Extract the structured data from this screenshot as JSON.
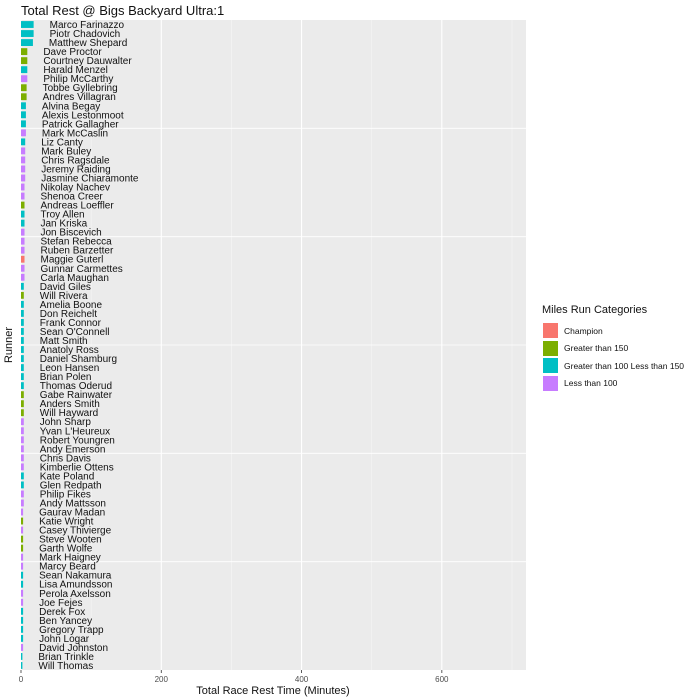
{
  "chart_data": {
    "type": "bar",
    "orientation": "horizontal",
    "title": "Total Rest @ Bigs Backyard Ultra:1",
    "xlabel": "Total Race Rest Time (Minutes)",
    "ylabel": "Runner",
    "xlim": [
      0,
      720
    ],
    "xticks": [
      "0",
      "200",
      "400",
      "600"
    ],
    "grid": true,
    "legend": {
      "title": "Miles Run Categories",
      "position": "right",
      "items": [
        {
          "label": "Champion",
          "color": "#F8766D"
        },
        {
          "label": "Greater than 150",
          "color": "#7CAE00"
        },
        {
          "label": "Greater than 100 Less than 150",
          "color": "#00BFC4"
        },
        {
          "label": "Less than 100",
          "color": "#C77CFF"
        }
      ]
    },
    "runners": [
      {
        "name": "Marco Farinazzo",
        "category": "Greater than 100 Less than 150",
        "value": 18
      },
      {
        "name": "Piotr Chadovich",
        "category": "Greater than 100 Less than 150",
        "value": 18
      },
      {
        "name": "Matthew Shepard",
        "category": "Greater than 100 Less than 150",
        "value": 17
      },
      {
        "name": "Dave Proctor",
        "category": "Greater than 150",
        "value": 9
      },
      {
        "name": "Courtney Dauwalter",
        "category": "Greater than 150",
        "value": 9
      },
      {
        "name": "Harald Menzel",
        "category": "Greater than 100 Less than 150",
        "value": 9
      },
      {
        "name": "Philip McCarthy",
        "category": "Less than 100",
        "value": 9
      },
      {
        "name": "Tobbe Gyllebring",
        "category": "Greater than 150",
        "value": 8
      },
      {
        "name": "Andres Villagran",
        "category": "Greater than 150",
        "value": 8
      },
      {
        "name": "Alvina Begay",
        "category": "Greater than 100 Less than 150",
        "value": 7
      },
      {
        "name": "Alexis Lestonmoot",
        "category": "Greater than 100 Less than 150",
        "value": 7
      },
      {
        "name": "Patrick Gallagher",
        "category": "Greater than 100 Less than 150",
        "value": 7
      },
      {
        "name": "Mark McCaslin",
        "category": "Less than 100",
        "value": 7
      },
      {
        "name": "Liz Canty",
        "category": "Greater than 100 Less than 150",
        "value": 6
      },
      {
        "name": "Mark Buley",
        "category": "Less than 100",
        "value": 6
      },
      {
        "name": "Chris Ragsdale",
        "category": "Less than 100",
        "value": 6
      },
      {
        "name": "Jeremy Raiding",
        "category": "Less than 100",
        "value": 6
      },
      {
        "name": "Jasmine Chiaramonte",
        "category": "Less than 100",
        "value": 6
      },
      {
        "name": "Nikolay Nachev",
        "category": "Less than 100",
        "value": 5
      },
      {
        "name": "Shenoa Creer",
        "category": "Less than 100",
        "value": 5
      },
      {
        "name": "Andreas Loeffler",
        "category": "Greater than 150",
        "value": 5
      },
      {
        "name": "Troy Allen",
        "category": "Greater than 100 Less than 150",
        "value": 5
      },
      {
        "name": "Jan Kriska",
        "category": "Greater than 100 Less than 150",
        "value": 5
      },
      {
        "name": "Jon Biscevich",
        "category": "Less than 100",
        "value": 5
      },
      {
        "name": "Stefan Rebecca",
        "category": "Less than 100",
        "value": 5
      },
      {
        "name": "Ruben Barzetter",
        "category": "Less than 100",
        "value": 5
      },
      {
        "name": "Maggie Guterl",
        "category": "Champion",
        "value": 5
      },
      {
        "name": "Gunnar Carmettes",
        "category": "Less than 100",
        "value": 5
      },
      {
        "name": "Carla Maughan",
        "category": "Less than 100",
        "value": 5
      },
      {
        "name": "David Giles",
        "category": "Greater than 100 Less than 150",
        "value": 4
      },
      {
        "name": "Will Rivera",
        "category": "Greater than 150",
        "value": 4
      },
      {
        "name": "Amelia Boone",
        "category": "Greater than 100 Less than 150",
        "value": 4
      },
      {
        "name": "Don Reichelt",
        "category": "Greater than 100 Less than 150",
        "value": 4
      },
      {
        "name": "Frank Connor",
        "category": "Greater than 100 Less than 150",
        "value": 4
      },
      {
        "name": "Sean O'Connell",
        "category": "Greater than 100 Less than 150",
        "value": 4
      },
      {
        "name": "Matt Smith",
        "category": "Greater than 100 Less than 150",
        "value": 4
      },
      {
        "name": "Anatoly Ross",
        "category": "Greater than 100 Less than 150",
        "value": 4
      },
      {
        "name": "Daniel Shamburg",
        "category": "Greater than 100 Less than 150",
        "value": 4
      },
      {
        "name": "Leon Hansen",
        "category": "Greater than 100 Less than 150",
        "value": 4
      },
      {
        "name": "Brian Polen",
        "category": "Greater than 100 Less than 150",
        "value": 4
      },
      {
        "name": "Thomas Oderud",
        "category": "Greater than 100 Less than 150",
        "value": 4
      },
      {
        "name": "Gabe Rainwater",
        "category": "Greater than 150",
        "value": 4
      },
      {
        "name": "Anders Smith",
        "category": "Greater than 150",
        "value": 4
      },
      {
        "name": "Will Hayward",
        "category": "Greater than 150",
        "value": 4
      },
      {
        "name": "John Sharp",
        "category": "Less than 100",
        "value": 4
      },
      {
        "name": "Yvan L'Heureux",
        "category": "Less than 100",
        "value": 4
      },
      {
        "name": "Robert Youngren",
        "category": "Less than 100",
        "value": 4
      },
      {
        "name": "Andy Emerson",
        "category": "Less than 100",
        "value": 4
      },
      {
        "name": "Chris Davis",
        "category": "Less than 100",
        "value": 4
      },
      {
        "name": "Kimberlie Ottens",
        "category": "Less than 100",
        "value": 4
      },
      {
        "name": "Kate Poland",
        "category": "Greater than 100 Less than 150",
        "value": 4
      },
      {
        "name": "Glen Redpath",
        "category": "Greater than 100 Less than 150",
        "value": 4
      },
      {
        "name": "Philip Fikes",
        "category": "Less than 100",
        "value": 4
      },
      {
        "name": "Andy Mattsson",
        "category": "Less than 100",
        "value": 4
      },
      {
        "name": "Gaurav Madan",
        "category": "Less than 100",
        "value": 3
      },
      {
        "name": "Katie Wright",
        "category": "Greater than 150",
        "value": 3
      },
      {
        "name": "Casey Thivierge",
        "category": "Less than 100",
        "value": 3
      },
      {
        "name": "Steve Wooten",
        "category": "Greater than 150",
        "value": 3
      },
      {
        "name": "Garth Wolfe",
        "category": "Greater than 150",
        "value": 3
      },
      {
        "name": "Mark Haigney",
        "category": "Less than 100",
        "value": 3
      },
      {
        "name": "Marcy Beard",
        "category": "Less than 100",
        "value": 3
      },
      {
        "name": "Sean Nakamura",
        "category": "Greater than 100 Less than 150",
        "value": 3
      },
      {
        "name": "Lisa Amundsson",
        "category": "Greater than 100 Less than 150",
        "value": 3
      },
      {
        "name": "Perola Axelsson",
        "category": "Less than 100",
        "value": 3
      },
      {
        "name": "Joe Fejes",
        "category": "Less than 100",
        "value": 3
      },
      {
        "name": "Derek Fox",
        "category": "Greater than 100 Less than 150",
        "value": 3
      },
      {
        "name": "Ben Yancey",
        "category": "Greater than 100 Less than 150",
        "value": 3
      },
      {
        "name": "Gregory Trapp",
        "category": "Greater than 100 Less than 150",
        "value": 3
      },
      {
        "name": "John Logar",
        "category": "Greater than 100 Less than 150",
        "value": 3
      },
      {
        "name": "David Johnston",
        "category": "Less than 100",
        "value": 3
      },
      {
        "name": "Brian Trinkle",
        "category": "Greater than 100 Less than 150",
        "value": 2
      },
      {
        "name": "Will Thomas",
        "category": "Greater than 100 Less than 150",
        "value": 2
      }
    ]
  }
}
